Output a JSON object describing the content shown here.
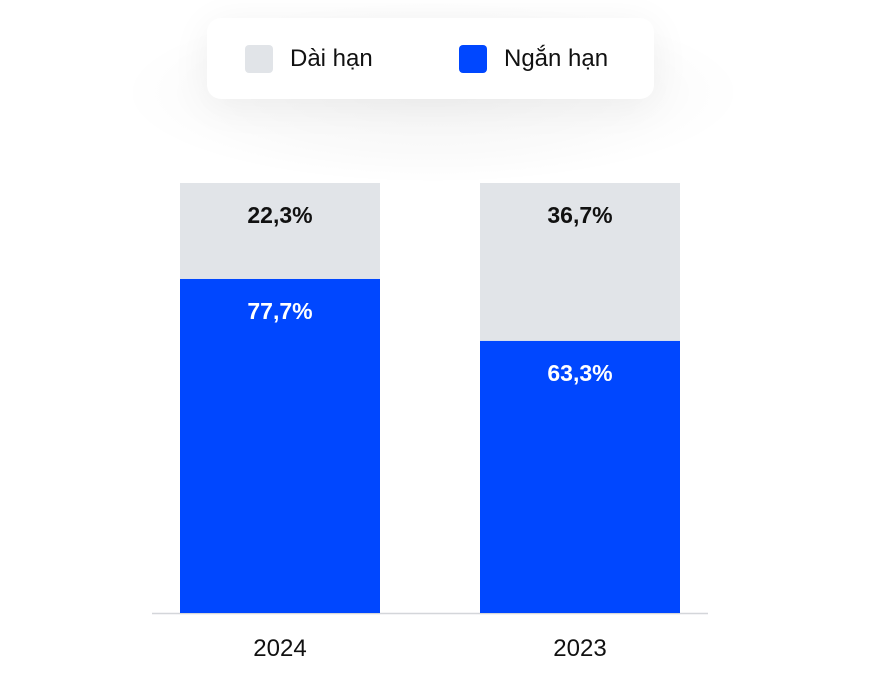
{
  "chart_data": {
    "type": "bar",
    "stacked": true,
    "categories": [
      "2024",
      "2023"
    ],
    "series": [
      {
        "name": "Ngắn hạn",
        "values": [
          77.7,
          63.3
        ],
        "labels": [
          "77,7%",
          "63,3%"
        ],
        "color": "#0047FF",
        "label_color": "#ffffff"
      },
      {
        "name": "Dài hạn",
        "values": [
          22.3,
          36.7
        ],
        "labels": [
          "22,3%",
          "36,7%"
        ],
        "color": "#E1E4E8",
        "label_color": "#111111"
      }
    ],
    "legend_order": [
      1,
      0
    ],
    "legend_position": "top",
    "title": "",
    "xlabel": "",
    "ylabel": "",
    "ylim": [
      0,
      100
    ],
    "grid": false
  }
}
